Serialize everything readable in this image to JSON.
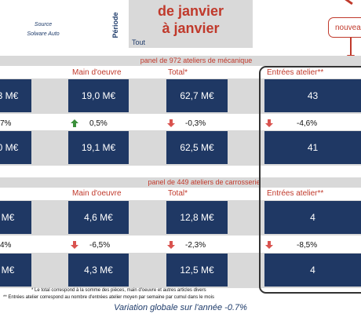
{
  "header": {
    "source_label": "Source",
    "source_name": "Solware Auto",
    "period_label": "Période",
    "period_line1": "de janvier",
    "period_line2": "à janvier",
    "period_filter": "Tout",
    "new_badge": "nouvea"
  },
  "panel_meca": {
    "title": "panel de 972 ateliers de mécanique",
    "columns": [
      "Main d'oeuvre",
      "Total*",
      "Entrées atelier**"
    ],
    "row1": [
      "3 M€",
      "19,0 M€",
      "62,7 M€",
      "43"
    ],
    "pct": [
      "7%",
      "0,5%",
      "-0,3%",
      "-4,6%"
    ],
    "row2": [
      "0 M€",
      "19,1 M€",
      "62,5 M€",
      "41"
    ]
  },
  "panel_carro": {
    "title": "panel de 449 ateliers de carrosserie",
    "columns": [
      "Main d'oeuvre",
      "Total*",
      "Entrées atelier**"
    ],
    "row1": [
      "M€",
      "4,6 M€",
      "12,8 M€",
      "4"
    ],
    "pct": [
      "4%",
      "-6,5%",
      "-2,3%",
      "-8,5%"
    ],
    "row2": [
      "M€",
      "4,3 M€",
      "12,5 M€",
      "4"
    ]
  },
  "footnotes": {
    "note1": "* Le total correspond à la somme des pièces, main d'oeuvre et autres articles divers",
    "note2": "** Entrées atelier correspond au nombre d'entrées atelier moyen par semaine par cumul dans le mois"
  },
  "variation": "Variation globale sur l'année -0.7%",
  "colors": {
    "navy": "#1f3864",
    "accent": "#c0392b",
    "gray": "#d9d9d9",
    "up": "#3a8f3a"
  }
}
